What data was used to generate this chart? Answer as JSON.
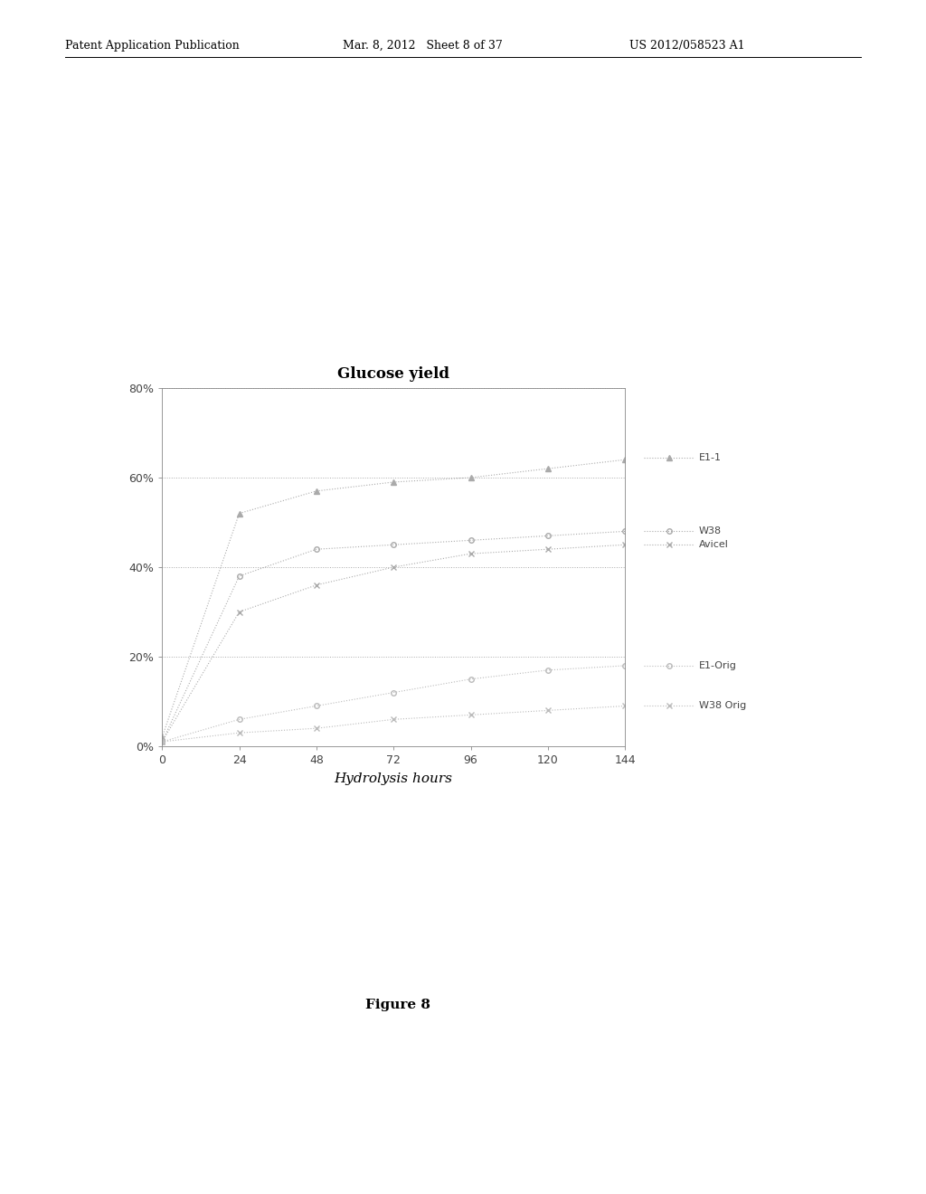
{
  "title": "Glucose yield",
  "xlabel": "Hydrolysis hours",
  "xlim": [
    0,
    144
  ],
  "ylim": [
    0,
    0.8
  ],
  "xticks": [
    0,
    24,
    48,
    72,
    96,
    120,
    144
  ],
  "yticks": [
    0.0,
    0.2,
    0.4,
    0.6,
    0.8
  ],
  "ytick_labels": [
    "0%",
    "20%",
    "40%",
    "60%",
    "80%"
  ],
  "background_color": "#ffffff",
  "series": [
    {
      "label": "E1-1",
      "color": "#aaaaaa",
      "marker": "^",
      "x": [
        0,
        24,
        48,
        72,
        96,
        120,
        144
      ],
      "y": [
        0.02,
        0.52,
        0.57,
        0.59,
        0.6,
        0.62,
        0.64
      ]
    },
    {
      "label": "W38",
      "color": "#aaaaaa",
      "marker": "o",
      "x": [
        0,
        24,
        48,
        72,
        96,
        120,
        144
      ],
      "y": [
        0.01,
        0.38,
        0.44,
        0.45,
        0.46,
        0.47,
        0.48
      ]
    },
    {
      "label": "Avicel",
      "color": "#aaaaaa",
      "marker": "x",
      "x": [
        0,
        24,
        48,
        72,
        96,
        120,
        144
      ],
      "y": [
        0.01,
        0.3,
        0.36,
        0.4,
        0.43,
        0.44,
        0.45
      ]
    },
    {
      "label": "E1-Orig",
      "color": "#bbbbbb",
      "marker": "o",
      "x": [
        0,
        24,
        48,
        72,
        96,
        120,
        144
      ],
      "y": [
        0.01,
        0.06,
        0.09,
        0.12,
        0.15,
        0.17,
        0.18
      ]
    },
    {
      "label": "W38 Orig",
      "color": "#bbbbbb",
      "marker": "x",
      "x": [
        0,
        24,
        48,
        72,
        96,
        120,
        144
      ],
      "y": [
        0.01,
        0.03,
        0.04,
        0.06,
        0.07,
        0.08,
        0.09
      ]
    }
  ],
  "header_left": "Patent Application Publication",
  "header_mid": "Mar. 8, 2012   Sheet 8 of 37",
  "header_right": "US 2012/058523 A1",
  "figure_label": "Figure 8"
}
